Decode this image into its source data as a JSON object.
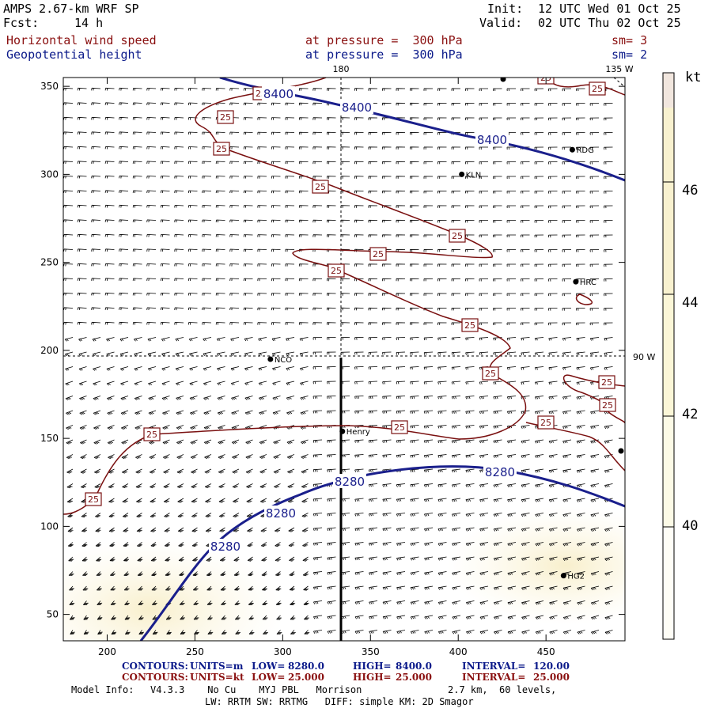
{
  "header": {
    "model": "AMPS 2.67-km WRF SP",
    "forecast_label": "Fcst:",
    "forecast_hours": "14 h",
    "init_label": "Init:",
    "init_time": "12 UTC Wed 01 Oct 25",
    "valid_label": "Valid:",
    "valid_time": "02 UTC Thu 02 Oct 25",
    "field1_name": "Horizontal wind speed",
    "field1_level": "at pressure =  300 hPa",
    "field1_smooth": "sm= 3",
    "field2_name": "Geopotential height",
    "field2_level": "at pressure =  300 hPa",
    "field2_smooth": "sm= 2"
  },
  "map": {
    "meridian_top_label": "180",
    "meridian_135_label": "135 W",
    "meridian_90_label": "90 W",
    "x_axis_ticks": [
      "200",
      "250",
      "300",
      "350",
      "400",
      "450"
    ],
    "y_axis_ticks": [
      "50",
      "100",
      "150",
      "200",
      "250",
      "300",
      "350"
    ],
    "x_tick_values": [
      200,
      250,
      300,
      350,
      400,
      450
    ],
    "y_tick_values": [
      50,
      100,
      150,
      200,
      250,
      300,
      350
    ],
    "x_range": [
      175,
      495
    ],
    "y_range": [
      35,
      355
    ],
    "stations": [
      {
        "name": "KLN",
        "x": 402,
        "y": 300
      },
      {
        "name": "RDG",
        "x": 465,
        "y": 314
      },
      {
        "name": "HRC",
        "x": 467,
        "y": 239
      },
      {
        "name": "NCO",
        "x": 293,
        "y": 195
      },
      {
        "name": "Henry",
        "x": 334,
        "y": 154
      },
      {
        "name": "HG2",
        "x": 460,
        "y": 72
      }
    ],
    "height_contour_labels": [
      "8400",
      "8400",
      "8400",
      "8280",
      "8280",
      "8280",
      "8280"
    ],
    "speed_contour_label": "25",
    "speed_contour_label_count": 17
  },
  "colorbar": {
    "unit": "kt",
    "levels": [
      "46",
      "44",
      "42",
      "40"
    ],
    "colors": [
      "#f1e6de",
      "#f8f1cf",
      "#fbf6d7",
      "#fcfae6",
      "#fefdf6"
    ]
  },
  "footer": {
    "row1": {
      "label": "CONTOURS:",
      "units": "UNITS=m",
      "low_label": "LOW=",
      "low": "8280.0",
      "high_label": "HIGH=",
      "high": "8400.0",
      "interval_label": "INTERVAL=",
      "interval": "120.00"
    },
    "row2": {
      "label": "CONTOURS:",
      "units": "UNITS=kt",
      "low_label": "LOW=",
      "low": "25.000",
      "high_label": "HIGH=",
      "high": "25.000",
      "interval_label": "INTERVAL=",
      "interval": "25.000"
    },
    "model_info_label": "Model Info:",
    "model_info": "V4.3.3    No Cu    MYJ PBL   Morrison",
    "resolution": "2.7 km,  60 levels,",
    "physics": "LW: RRTM SW: RRTMG   DIFF: simple KM: 2D Smagor"
  },
  "colors": {
    "height_contour": "#1a1f8c",
    "speed_contour": "#7a1010"
  }
}
